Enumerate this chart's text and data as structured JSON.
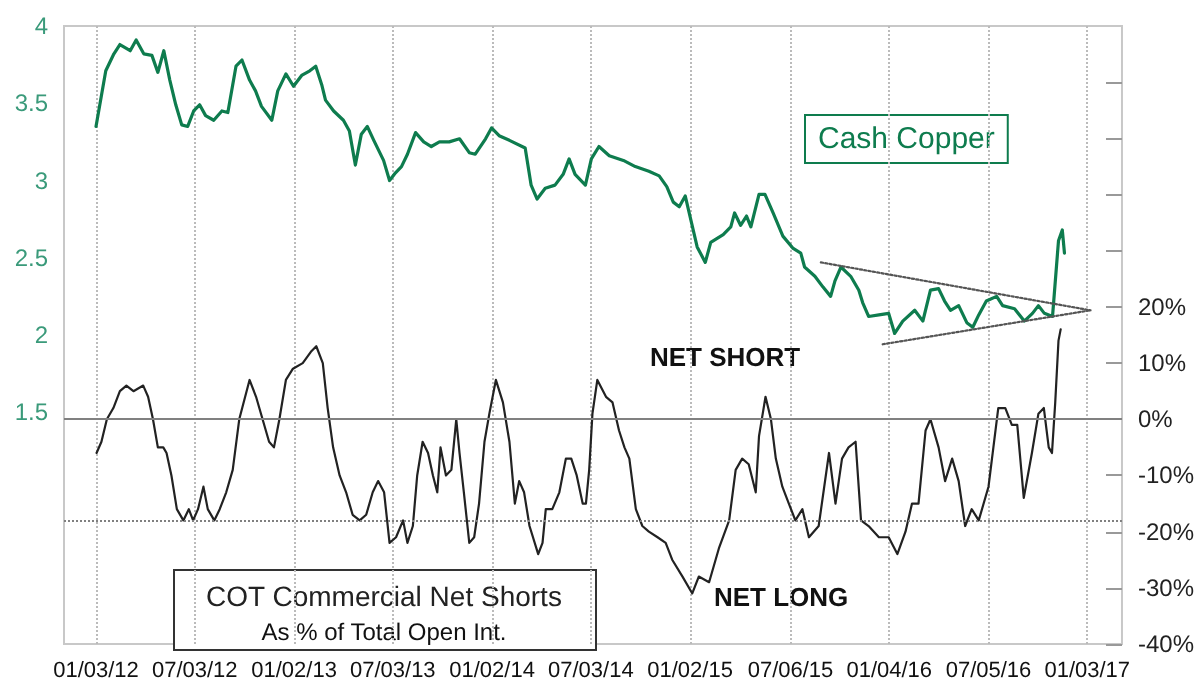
{
  "chart_data": {
    "type": "line",
    "xlim": [
      "2011-11-05",
      "2017-03-08"
    ],
    "xticks": [
      {
        "value": "2012-01-03",
        "label": "01/03/12"
      },
      {
        "value": "2012-07-03",
        "label": "07/03/12"
      },
      {
        "value": "2013-01-02",
        "label": "01/02/13"
      },
      {
        "value": "2013-07-03",
        "label": "07/03/13"
      },
      {
        "value": "2014-01-02",
        "label": "01/02/14"
      },
      {
        "value": "2014-07-03",
        "label": "07/03/14"
      },
      {
        "value": "2015-01-02",
        "label": "01/02/15"
      },
      {
        "value": "2015-07-06",
        "label": "07/06/15"
      },
      {
        "value": "2016-01-04",
        "label": "01/04/16"
      },
      {
        "value": "2016-07-05",
        "label": "07/05/16"
      },
      {
        "value": "2017-01-03",
        "label": "01/03/17"
      }
    ],
    "ylim": [
      0,
      4
    ],
    "yticks": [
      1.5,
      2,
      2.5,
      3,
      3.5,
      4
    ],
    "y2lim": [
      -40,
      70
    ],
    "y2ticks": [
      {
        "value": -40,
        "label": "-40%"
      },
      {
        "value": -30,
        "label": "-30%"
      },
      {
        "value": -20,
        "label": "-20%"
      },
      {
        "value": -10,
        "label": "-10%"
      },
      {
        "value": 0,
        "label": "0%"
      },
      {
        "value": 10,
        "label": "10%"
      },
      {
        "value": 20,
        "label": "20%"
      },
      {
        "value": 30,
        "label": null
      },
      {
        "value": 40,
        "label": null
      },
      {
        "value": 50,
        "label": null
      },
      {
        "value": 60,
        "label": null
      }
    ],
    "grid": "x",
    "marker": "none",
    "annotations": [
      "NET SHORT",
      "NET LONG",
      "As % of Total Open Int."
    ],
    "ref_lines": [
      {
        "axis": "y2",
        "value": 0,
        "color": "#808080",
        "line_style": "solid"
      },
      {
        "axis": "y2",
        "value": -18,
        "color": "#808080",
        "line_style": "dotted"
      }
    ],
    "series": [
      {
        "name": "Cash Copper",
        "color": "#0e7c4e",
        "x": [
          "2012-01-03",
          "2012-01-10",
          "2012-01-21",
          "2012-02-05",
          "2012-02-16",
          "2012-03-06",
          "2012-03-17",
          "2012-03-31",
          "2012-04-15",
          "2012-04-26",
          "2012-05-07",
          "2012-05-18",
          "2012-05-29",
          "2012-06-09",
          "2012-06-20",
          "2012-07-01",
          "2012-07-12",
          "2012-07-23",
          "2012-08-07",
          "2012-08-22",
          "2012-09-02",
          "2012-09-17",
          "2012-09-28",
          "2012-10-12",
          "2012-10-23",
          "2012-11-03",
          "2012-11-22",
          "2012-12-03",
          "2012-12-18",
          "2013-01-01",
          "2013-01-16",
          "2013-01-31",
          "2013-02-11",
          "2013-02-22",
          "2013-03-01",
          "2013-03-16",
          "2013-04-03",
          "2013-04-14",
          "2013-04-25",
          "2013-05-06",
          "2013-05-17",
          "2013-05-29",
          "2013-06-16",
          "2013-06-27",
          "2013-07-08",
          "2013-07-19",
          "2013-07-30",
          "2013-08-14",
          "2013-08-29",
          "2013-09-12",
          "2013-09-27",
          "2013-10-15",
          "2013-11-03",
          "2013-11-21",
          "2013-12-02",
          "2013-12-21",
          "2014-01-01",
          "2014-01-15",
          "2014-02-03",
          "2014-03-04",
          "2014-03-15",
          "2014-03-26",
          "2014-04-10",
          "2014-04-28",
          "2014-05-13",
          "2014-05-24",
          "2014-06-04",
          "2014-06-23",
          "2014-07-04",
          "2014-07-18",
          "2014-08-06",
          "2014-09-01",
          "2014-09-23",
          "2014-10-18",
          "2014-11-06",
          "2014-11-20",
          "2014-12-02",
          "2014-12-13",
          "2014-12-24",
          "2015-01-15",
          "2015-01-30",
          "2015-02-09",
          "2015-03-04",
          "2015-03-18",
          "2015-03-25",
          "2015-04-05",
          "2015-04-16",
          "2015-04-24",
          "2015-05-09",
          "2015-05-20",
          "2015-06-04",
          "2015-06-22",
          "2015-07-11",
          "2015-07-25",
          "2015-08-01",
          "2015-08-20",
          "2015-09-04",
          "2015-09-18",
          "2015-09-26",
          "2015-10-07",
          "2015-10-25",
          "2015-11-09",
          "2015-11-16",
          "2015-11-27",
          "2015-12-16",
          "2016-01-03",
          "2016-01-14",
          "2016-01-29",
          "2016-02-20",
          "2016-03-06",
          "2016-03-20",
          "2016-04-04",
          "2016-04-15",
          "2016-04-26",
          "2016-05-11",
          "2016-05-26",
          "2016-06-06",
          "2016-06-17",
          "2016-07-01",
          "2016-07-20",
          "2016-07-31",
          "2016-08-22",
          "2016-09-09",
          "2016-09-24",
          "2016-10-05",
          "2016-10-16",
          "2016-10-31",
          "2016-11-11",
          "2016-11-18",
          "2016-11-22"
        ],
        "values": [
          3.35,
          3.49,
          3.71,
          3.82,
          3.88,
          3.84,
          3.91,
          3.82,
          3.81,
          3.7,
          3.84,
          3.65,
          3.49,
          3.36,
          3.35,
          3.45,
          3.49,
          3.42,
          3.39,
          3.45,
          3.44,
          3.74,
          3.78,
          3.65,
          3.58,
          3.48,
          3.39,
          3.58,
          3.69,
          3.61,
          3.68,
          3.71,
          3.74,
          3.62,
          3.52,
          3.45,
          3.39,
          3.32,
          3.1,
          3.3,
          3.35,
          3.26,
          3.13,
          3.0,
          3.05,
          3.09,
          3.17,
          3.31,
          3.25,
          3.22,
          3.25,
          3.25,
          3.27,
          3.18,
          3.17,
          3.27,
          3.34,
          3.29,
          3.26,
          3.21,
          2.97,
          2.88,
          2.95,
          2.97,
          3.04,
          3.14,
          3.04,
          2.97,
          3.14,
          3.22,
          3.16,
          3.13,
          3.09,
          3.06,
          3.03,
          2.96,
          2.86,
          2.83,
          2.9,
          2.57,
          2.47,
          2.6,
          2.65,
          2.7,
          2.79,
          2.71,
          2.77,
          2.7,
          2.91,
          2.91,
          2.79,
          2.64,
          2.56,
          2.53,
          2.44,
          2.38,
          2.31,
          2.25,
          2.35,
          2.44,
          2.38,
          2.29,
          2.21,
          2.12,
          2.13,
          2.14,
          2.01,
          2.09,
          2.16,
          2.09,
          2.29,
          2.3,
          2.22,
          2.16,
          2.19,
          2.08,
          2.05,
          2.13,
          2.22,
          2.25,
          2.19,
          2.17,
          2.09,
          2.14,
          2.19,
          2.14,
          2.12,
          2.61,
          2.68,
          2.53
        ]
      },
      {
        "name": "COT Commercial Net Shorts",
        "axis": "y2",
        "color": "#222222",
        "x": [
          "2012-01-04",
          "2012-01-13",
          "2012-01-23",
          "2012-02-04",
          "2012-02-16",
          "2012-02-28",
          "2012-03-12",
          "2012-03-30",
          "2012-04-08",
          "2012-04-17",
          "2012-04-26",
          "2012-05-06",
          "2012-05-12",
          "2012-05-21",
          "2012-05-31",
          "2012-06-12",
          "2012-06-22",
          "2012-06-30",
          "2012-07-09",
          "2012-07-19",
          "2012-07-27",
          "2012-08-08",
          "2012-08-18",
          "2012-08-30",
          "2012-09-11",
          "2012-09-23",
          "2012-10-12",
          "2012-10-24",
          "2012-11-05",
          "2012-11-17",
          "2012-11-26",
          "2012-12-06",
          "2012-12-18",
          "2012-12-31",
          "2013-01-18",
          "2013-02-02",
          "2013-02-12",
          "2013-02-24",
          "2013-03-05",
          "2013-03-15",
          "2013-03-27",
          "2013-04-08",
          "2013-04-20",
          "2013-05-03",
          "2013-05-15",
          "2013-05-27",
          "2013-06-06",
          "2013-06-17",
          "2013-06-27",
          "2013-07-09",
          "2013-07-22",
          "2013-07-30",
          "2013-08-09",
          "2013-08-17",
          "2013-08-27",
          "2013-09-06",
          "2013-09-15",
          "2013-09-23",
          "2013-09-29",
          "2013-10-09",
          "2013-10-19",
          "2013-10-28",
          "2013-11-03",
          "2013-11-11",
          "2013-11-21",
          "2013-11-30",
          "2013-12-09",
          "2013-12-19",
          "2013-12-28",
          "2014-01-09",
          "2014-01-22",
          "2014-02-03",
          "2014-02-13",
          "2014-02-21",
          "2014-03-02",
          "2014-03-12",
          "2014-03-28",
          "2014-04-05",
          "2014-04-11",
          "2014-04-23",
          "2014-05-06",
          "2014-05-18",
          "2014-05-28",
          "2014-06-07",
          "2014-06-18",
          "2014-06-24",
          "2014-06-30",
          "2014-07-06",
          "2014-07-15",
          "2014-07-31",
          "2014-08-12",
          "2014-08-24",
          "2014-09-03",
          "2014-09-12",
          "2014-09-24",
          "2014-10-06",
          "2014-10-18",
          "2014-11-03",
          "2014-11-18",
          "2014-11-30",
          "2014-12-19",
          "2015-01-06",
          "2015-01-18",
          "2015-02-06",
          "2015-02-24",
          "2015-03-15",
          "2015-03-27",
          "2015-04-08",
          "2015-04-20",
          "2015-05-03",
          "2015-05-09",
          "2015-05-21",
          "2015-05-31",
          "2015-06-09",
          "2015-06-21",
          "2015-07-03",
          "2015-07-15",
          "2015-07-28",
          "2015-08-09",
          "2015-08-27",
          "2015-09-15",
          "2015-09-27",
          "2015-10-09",
          "2015-10-21",
          "2015-11-03",
          "2015-11-13",
          "2015-11-27",
          "2015-12-16",
          "2016-01-03",
          "2016-01-19",
          "2016-02-03",
          "2016-02-15",
          "2016-02-27",
          "2016-03-11",
          "2016-03-20",
          "2016-04-04",
          "2016-04-16",
          "2016-04-29",
          "2016-05-11",
          "2016-05-23",
          "2016-06-04",
          "2016-06-17",
          "2016-07-05",
          "2016-07-23",
          "2016-08-05",
          "2016-08-17",
          "2016-08-27",
          "2016-09-08",
          "2016-09-23",
          "2016-10-05",
          "2016-10-15",
          "2016-10-24",
          "2016-10-30",
          "2016-11-05",
          "2016-11-11",
          "2016-11-15"
        ],
        "values": [
          -6,
          -4,
          0,
          2,
          5,
          6,
          5,
          6,
          4,
          0,
          -5,
          -5,
          -6,
          -10,
          -16,
          -18,
          -16,
          -18,
          -16,
          -12,
          -16,
          -18,
          -16,
          -13,
          -9,
          0,
          7,
          4,
          0,
          -4,
          -5,
          0,
          7,
          9,
          10,
          12,
          13,
          10,
          2,
          -5,
          -10,
          -13,
          -17,
          -18,
          -17,
          -13,
          -11,
          -13,
          -22,
          -21,
          -18,
          -22,
          -19,
          -10,
          -4,
          -6,
          -10,
          -13,
          -5,
          -10,
          -9,
          0,
          -6,
          -13,
          -22,
          -21,
          -15,
          -4,
          1,
          7,
          3,
          -4,
          -15,
          -11,
          -13,
          -19,
          -24,
          -22,
          -16,
          -16,
          -13,
          -7,
          -7,
          -10,
          -15,
          -15,
          -9,
          1,
          7,
          4,
          3,
          -2,
          -5,
          -7,
          -16,
          -19,
          -20,
          -21,
          -22,
          -25,
          -28,
          -31,
          -28,
          -29,
          -23,
          -18,
          -9,
          -7,
          -8,
          -13,
          -3,
          4,
          0,
          -7,
          -12,
          -15,
          -18,
          -16,
          -21,
          -19,
          -6,
          -15,
          -7,
          -5,
          -4,
          -18,
          -19,
          -21,
          -21,
          -24,
          -20,
          -15,
          -15,
          -2,
          0,
          -5,
          -11,
          -7,
          -11,
          -19,
          -16,
          -18,
          -12,
          2,
          2,
          -1,
          -1,
          -14,
          -6,
          1,
          2,
          -5,
          -6,
          3,
          14,
          16
        ]
      },
      {
        "type": "line",
        "color": "#555555",
        "line_style": "dotted",
        "x": [
          "2015-08-31",
          "2017-01-09"
        ],
        "values": [
          2.47,
          2.16
        ]
      },
      {
        "type": "line",
        "color": "#555555",
        "line_style": "dotted",
        "x": [
          "2015-12-23",
          "2017-01-09"
        ],
        "values": [
          1.94,
          2.16
        ]
      }
    ]
  }
}
